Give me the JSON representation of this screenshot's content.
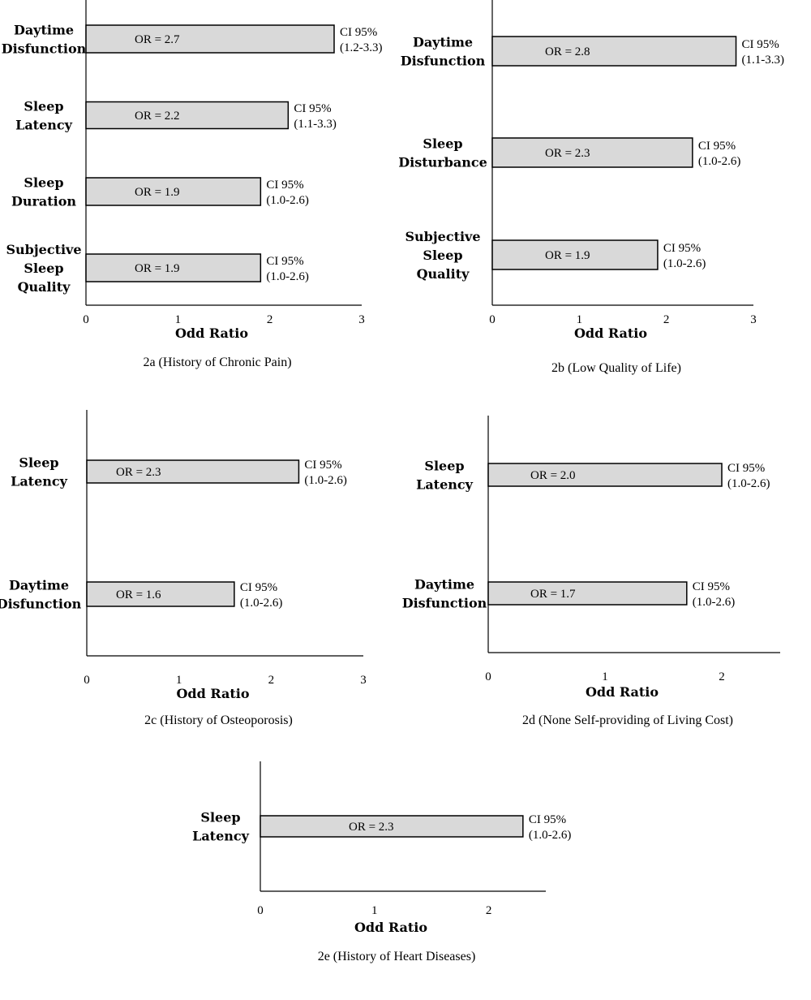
{
  "chart_data": [
    {
      "type": "bar",
      "orientation": "horizontal",
      "caption": "2a (History of Chronic Pain)",
      "xlabel": "Odd Ratio",
      "xlim": [
        0,
        3
      ],
      "xticks": [
        0,
        1,
        2,
        3
      ],
      "categories": [
        [
          "Daytime",
          "Disfunction"
        ],
        [
          "Sleep",
          "Latency"
        ],
        [
          "Sleep",
          "Duration"
        ],
        [
          "Subjective",
          "Sleep",
          "Quality"
        ]
      ],
      "values": [
        2.7,
        2.2,
        1.9,
        1.9
      ],
      "bar_labels": [
        "OR = 2.7",
        "OR = 2.2",
        "OR = 1.9",
        "OR = 1.9"
      ],
      "ci_title": "CI 95%",
      "ci_labels": [
        "(1.2-3.3)",
        "(1.1-3.3)",
        "(1.0-2.6)",
        "(1.0-2.6)"
      ]
    },
    {
      "type": "bar",
      "orientation": "horizontal",
      "caption": "2b (Low Quality of Life)",
      "xlabel": "Odd Ratio",
      "xlim": [
        0,
        3
      ],
      "xticks": [
        0,
        1,
        2,
        3
      ],
      "categories": [
        [
          "Daytime",
          "Disfunction"
        ],
        [
          "Sleep",
          "Disturbance"
        ],
        [
          "Subjective",
          "Sleep",
          "Quality"
        ]
      ],
      "values": [
        2.8,
        2.3,
        1.9
      ],
      "bar_labels": [
        "OR = 2.8",
        "OR = 2.3",
        "OR = 1.9"
      ],
      "ci_title": "CI 95%",
      "ci_labels": [
        "(1.1-3.3)",
        "(1.0-2.6)",
        "(1.0-2.6)"
      ]
    },
    {
      "type": "bar",
      "orientation": "horizontal",
      "caption": "2c (History of Osteoporosis)",
      "xlabel": "Odd Ratio",
      "xlim": [
        0,
        3
      ],
      "xticks": [
        0,
        1,
        2,
        3
      ],
      "categories": [
        [
          "Sleep",
          "Latency"
        ],
        [
          "Daytime",
          "Disfunction"
        ]
      ],
      "values": [
        2.3,
        1.6
      ],
      "bar_labels": [
        "OR = 2.3",
        "OR = 1.6"
      ],
      "ci_title": "CI 95%",
      "ci_labels": [
        "(1.0-2.6)",
        "(1.0-2.6)"
      ]
    },
    {
      "type": "bar",
      "orientation": "horizontal",
      "caption": "2d (None Self-providing of Living Cost)",
      "xlabel": "Odd Ratio",
      "xlim": [
        0,
        2.5
      ],
      "xticks": [
        0,
        1,
        2
      ],
      "categories": [
        [
          "Sleep",
          "Latency"
        ],
        [
          "Daytime",
          "Disfunction"
        ]
      ],
      "values": [
        2.0,
        1.7
      ],
      "bar_labels": [
        "OR = 2.0",
        "OR = 1.7"
      ],
      "ci_title": "CI 95%",
      "ci_labels": [
        "(1.0-2.6)",
        "(1.0-2.6)"
      ]
    },
    {
      "type": "bar",
      "orientation": "horizontal",
      "caption": "2e (History of Heart Diseases)",
      "xlabel": "Odd Ratio",
      "xlim": [
        0,
        2.5
      ],
      "xticks": [
        0,
        1,
        2
      ],
      "categories": [
        [
          "Sleep",
          "Latency"
        ]
      ],
      "values": [
        2.3
      ],
      "bar_labels": [
        "OR = 2.3"
      ],
      "ci_title": "CI 95%",
      "ci_labels": [
        "(1.0-2.6)"
      ]
    }
  ]
}
